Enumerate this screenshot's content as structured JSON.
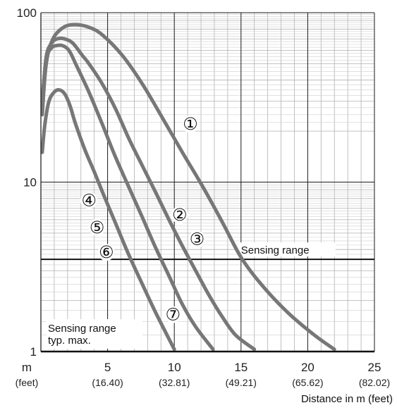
{
  "chart_data": {
    "type": "line",
    "title": "",
    "xlabel": "Distance in m (feet)",
    "ylabel": "",
    "xlim": [
      0,
      25
    ],
    "ylim": [
      1,
      100
    ],
    "yscale": "log",
    "grid": true,
    "x_ticks": [
      {
        "value": 0,
        "label": "m",
        "sub": "(feet)"
      },
      {
        "value": 5,
        "label": "5",
        "sub": "(16.40)"
      },
      {
        "value": 10,
        "label": "10",
        "sub": "(32.81)"
      },
      {
        "value": 15,
        "label": "15",
        "sub": "(49.21)"
      },
      {
        "value": 20,
        "label": "20",
        "sub": "(65.62)"
      },
      {
        "value": 25,
        "label": "25",
        "sub": "(82.02)"
      }
    ],
    "y_ticks": [
      {
        "value": 1,
        "label": "1"
      },
      {
        "value": 10,
        "label": "10"
      },
      {
        "value": 100,
        "label": "100"
      }
    ],
    "threshold": {
      "y": 3.5,
      "label": "Sensing range"
    },
    "corner_label_line1": "Sensing range",
    "corner_label_line2": "typ. max.",
    "color": "#777777",
    "series": [
      {
        "name": "①",
        "x": [
          0.1,
          0.4,
          0.9,
          1.7,
          2.6,
          3.6,
          4.6,
          6.1,
          7.6,
          9.1,
          10.6,
          12.1,
          13.6,
          15.0,
          16.5,
          18.5,
          20.5,
          22.0
        ],
        "y": [
          25,
          50,
          70,
          82,
          85,
          82,
          74,
          56,
          38,
          24,
          15,
          9.5,
          5.8,
          3.6,
          2.5,
          1.7,
          1.25,
          1.03
        ]
      },
      {
        "name": "②",
        "x": [
          0.1,
          0.4,
          0.8,
          1.2,
          1.8,
          2.4,
          3.1,
          3.6,
          4.6,
          5.6,
          6.6,
          7.6,
          8.6,
          9.6,
          10.6,
          11.6,
          12.6,
          13.6,
          14.6,
          16.0
        ],
        "y": [
          30,
          55,
          66,
          70,
          70,
          66,
          56,
          50,
          38,
          27,
          18,
          12.5,
          8.7,
          6.0,
          4.2,
          3.0,
          2.15,
          1.6,
          1.25,
          1.03
        ]
      },
      {
        "name": "③",
        "x": [
          0.1,
          0.4,
          0.8,
          1.2,
          1.6,
          2.1,
          2.6,
          3.6,
          4.6,
          5.6,
          6.6,
          7.6,
          8.6,
          9.6,
          10.6,
          11.6,
          12.9
        ],
        "y": [
          30,
          53,
          62,
          64,
          64,
          60,
          50,
          34,
          22,
          14,
          9.3,
          6.2,
          4.1,
          2.8,
          1.9,
          1.4,
          1.03
        ]
      },
      {
        "name": "⑦",
        "x": [
          0.1,
          0.3,
          0.6,
          1.0,
          1.4,
          1.8,
          2.2,
          2.6,
          3.3,
          4.0,
          4.6,
          5.6,
          6.6,
          7.6,
          8.6,
          10.0
        ],
        "y": [
          15,
          22,
          30,
          34,
          35,
          33,
          28,
          22,
          15.5,
          11.5,
          8.8,
          5.7,
          3.7,
          2.5,
          1.7,
          1.03
        ]
      }
    ],
    "series_markers": [
      {
        "label": "①",
        "x": 11.2,
        "y": 22
      },
      {
        "label": "②",
        "x": 10.4,
        "y": 6.4
      },
      {
        "label": "③",
        "x": 11.7,
        "y": 4.6
      },
      {
        "label": "④",
        "x": 3.6,
        "y": 7.8
      },
      {
        "label": "⑤",
        "x": 4.2,
        "y": 5.4
      },
      {
        "label": "⑥",
        "x": 4.9,
        "y": 3.85
      },
      {
        "label": "⑦",
        "x": 9.9,
        "y": 1.65
      }
    ]
  }
}
